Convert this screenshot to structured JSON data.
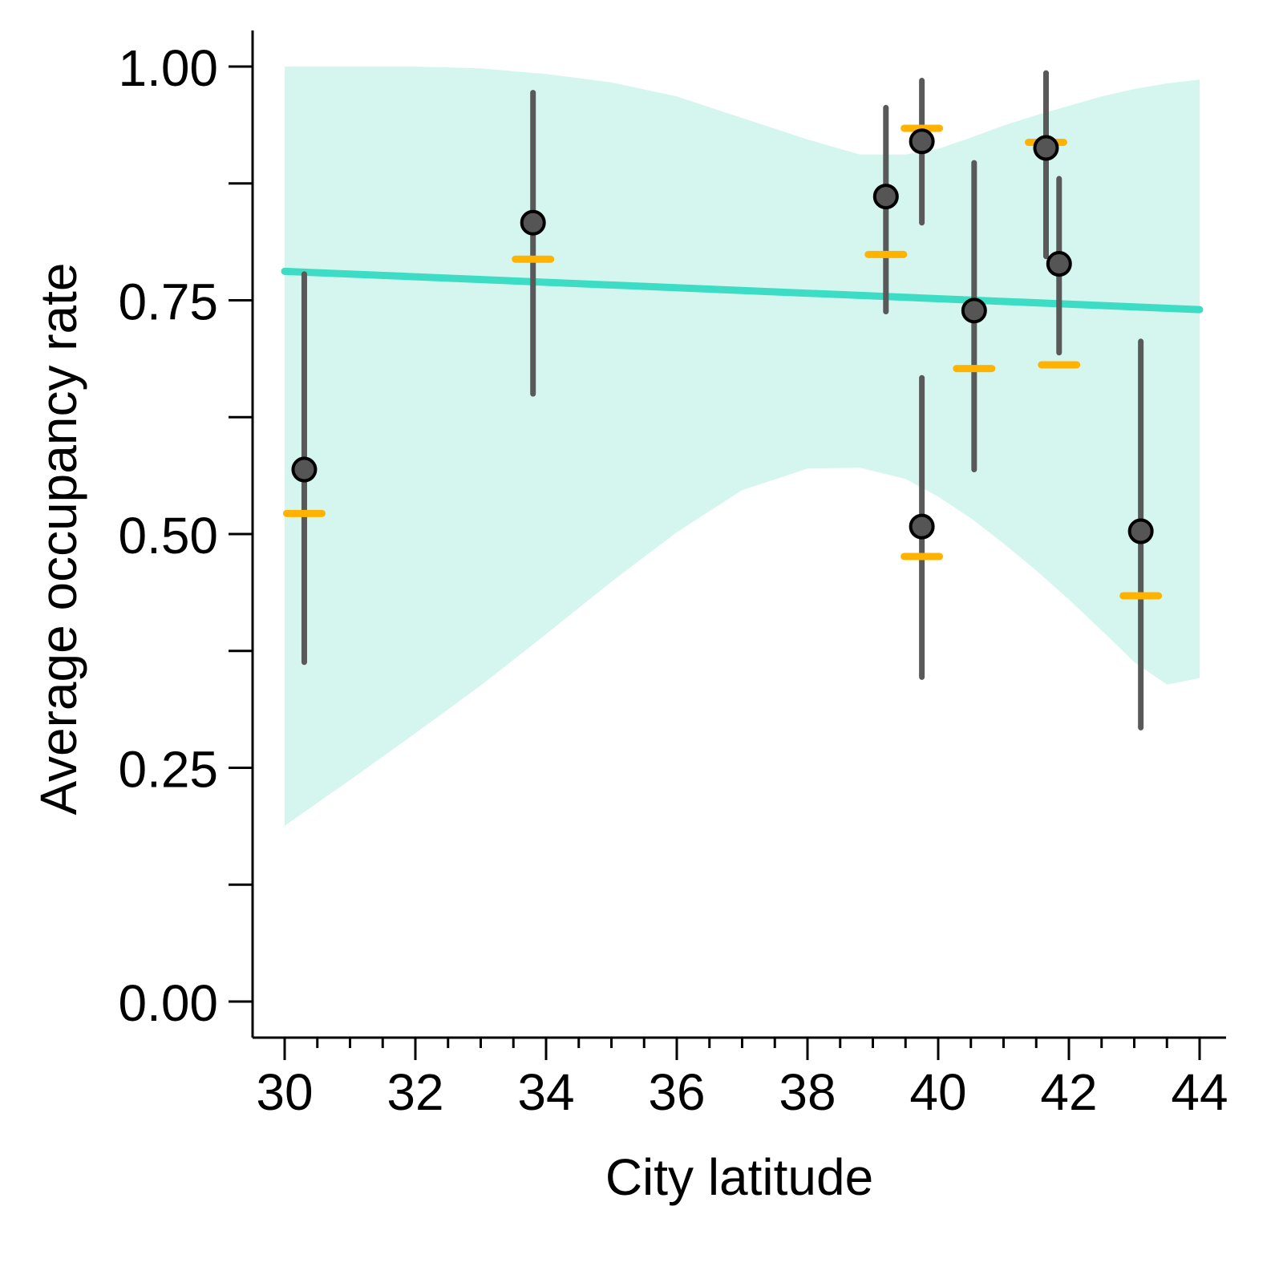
{
  "chart_data": {
    "type": "scatter",
    "xlabel": "City latitude",
    "ylabel": "Average occupancy rate",
    "xlim": [
      29.45,
      44.6
    ],
    "ylim": [
      -0.04,
      1.04
    ],
    "x_ticks_major": [
      30,
      32,
      34,
      36,
      38,
      40,
      42,
      44
    ],
    "x_tick_labels": [
      "30",
      "32",
      "34",
      "36",
      "38",
      "40",
      "42",
      "44"
    ],
    "x_ticks_minor_step": 0.5,
    "y_ticks": [
      0,
      0.125,
      0.25,
      0.375,
      0.5,
      0.625,
      0.75,
      0.875,
      1.0
    ],
    "y_tick_labels": [
      "0.00",
      "",
      "0.25",
      "",
      "0.50",
      "",
      "0.75",
      "",
      "1.00"
    ],
    "grid": false,
    "colors": {
      "ribbon": "#d4f6ee",
      "fit_line": "#3ddcc4",
      "points": "#555555",
      "point_outline": "#000000",
      "error_bars": "#595959",
      "orange_marks": "#ffb300"
    },
    "points": [
      {
        "x": 30.3,
        "y": 0.569,
        "lo": 0.363,
        "hi": 0.778,
        "orange": 0.522
      },
      {
        "x": 33.8,
        "y": 0.833,
        "lo": 0.65,
        "hi": 0.972,
        "orange": 0.794
      },
      {
        "x": 39.2,
        "y": 0.861,
        "lo": 0.738,
        "hi": 0.956,
        "orange": 0.799
      },
      {
        "x": 39.75,
        "y": 0.92,
        "lo": 0.833,
        "hi": 0.985,
        "orange": 0.934
      },
      {
        "x": 39.75,
        "y": 0.508,
        "lo": 0.347,
        "hi": 0.667,
        "orange": 0.476
      },
      {
        "x": 40.55,
        "y": 0.739,
        "lo": 0.569,
        "hi": 0.897,
        "orange": 0.677
      },
      {
        "x": 41.65,
        "y": 0.913,
        "lo": 0.797,
        "hi": 0.993,
        "orange": 0.919
      },
      {
        "x": 41.85,
        "y": 0.789,
        "lo": 0.694,
        "hi": 0.88,
        "orange": 0.681
      },
      {
        "x": 43.1,
        "y": 0.503,
        "lo": 0.293,
        "hi": 0.706,
        "orange": 0.434
      }
    ],
    "fit": {
      "x": [
        30,
        44
      ],
      "y": [
        0.781,
        0.74
      ]
    },
    "ribbon": {
      "x": [
        30.0,
        31.0,
        32.0,
        33.0,
        34.0,
        35.0,
        36.0,
        37.0,
        38.0,
        38.8,
        39.5,
        40.0,
        40.5,
        41.0,
        41.5,
        42.0,
        42.5,
        43.0,
        43.5,
        44.0
      ],
      "upper": [
        1.0,
        1.0,
        1.0,
        0.998,
        0.992,
        0.983,
        0.968,
        0.945,
        0.922,
        0.906,
        0.906,
        0.912,
        0.924,
        0.937,
        0.948,
        0.958,
        0.968,
        0.976,
        0.982,
        0.986
      ],
      "lower": [
        0.188,
        0.237,
        0.287,
        0.338,
        0.393,
        0.449,
        0.502,
        0.547,
        0.57,
        0.571,
        0.559,
        0.54,
        0.517,
        0.49,
        0.461,
        0.43,
        0.397,
        0.363,
        0.339,
        0.346
      ]
    }
  }
}
